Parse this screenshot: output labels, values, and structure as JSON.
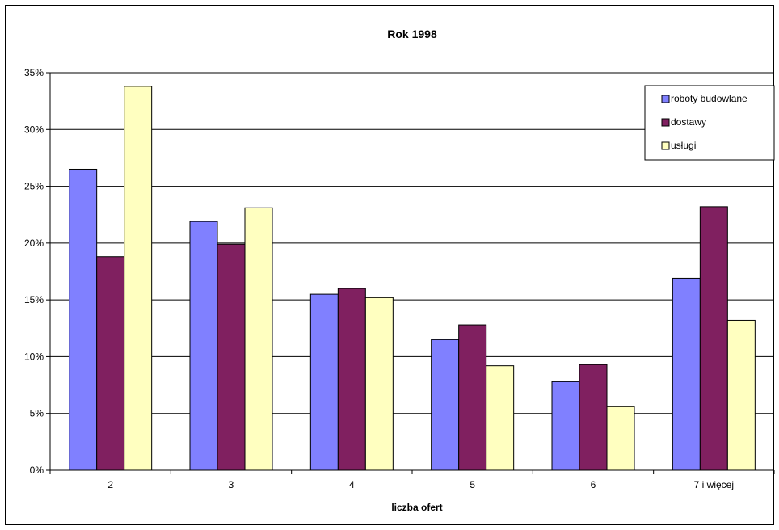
{
  "chart_data": {
    "type": "bar",
    "title": "Rok 1998",
    "xlabel": "liczba ofert",
    "ylabel": "",
    "categories": [
      "2",
      "3",
      "4",
      "5",
      "6",
      "7 i więcej"
    ],
    "series": [
      {
        "name": "roboty budowlane",
        "color": "#8080ff",
        "values": [
          26.5,
          21.9,
          15.5,
          11.5,
          7.8,
          16.9
        ]
      },
      {
        "name": "dostawy",
        "color": "#802060",
        "values": [
          18.8,
          19.9,
          16.0,
          12.8,
          9.3,
          23.2
        ]
      },
      {
        "name": "usługi",
        "color": "#ffffc0",
        "values": [
          33.8,
          23.1,
          15.2,
          9.2,
          5.6,
          13.2
        ]
      }
    ],
    "ylim": [
      0,
      35
    ],
    "yticks": [
      0,
      5,
      10,
      15,
      20,
      25,
      30,
      35
    ],
    "ytick_labels": [
      "0%",
      "5%",
      "10%",
      "15%",
      "20%",
      "25%",
      "30%",
      "35%"
    ],
    "grid": true,
    "legend_position": "top-right"
  }
}
